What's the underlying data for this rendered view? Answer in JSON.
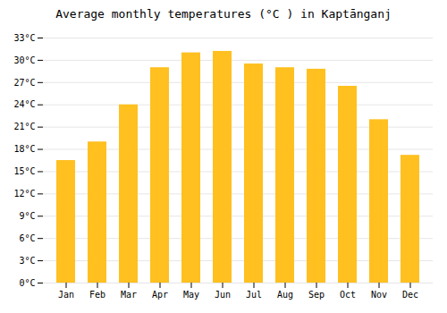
{
  "chart_data": {
    "type": "bar",
    "title": "Average monthly temperatures (°C ) in Kaptānganj",
    "categories": [
      "Jan",
      "Feb",
      "Mar",
      "Apr",
      "May",
      "Jun",
      "Jul",
      "Aug",
      "Sep",
      "Oct",
      "Nov",
      "Dec"
    ],
    "values": [
      16.5,
      19.0,
      24.0,
      29.0,
      31.0,
      31.2,
      29.5,
      29.0,
      28.8,
      26.5,
      22.0,
      17.2
    ],
    "color": "#FFC020",
    "ylim": [
      0,
      33
    ],
    "yticks": [
      {
        "value": 0,
        "label": "0°C"
      },
      {
        "value": 3,
        "label": "3°C"
      },
      {
        "value": 6,
        "label": "6°C"
      },
      {
        "value": 9,
        "label": "9°C"
      },
      {
        "value": 12,
        "label": "12°C"
      },
      {
        "value": 15,
        "label": "15°C"
      },
      {
        "value": 18,
        "label": "18°C"
      },
      {
        "value": 21,
        "label": "21°C"
      },
      {
        "value": 24,
        "label": "24°C"
      },
      {
        "value": 27,
        "label": "27°C"
      },
      {
        "value": 30,
        "label": "30°C"
      },
      {
        "value": 33,
        "label": "33°C"
      }
    ],
    "grid": true
  }
}
